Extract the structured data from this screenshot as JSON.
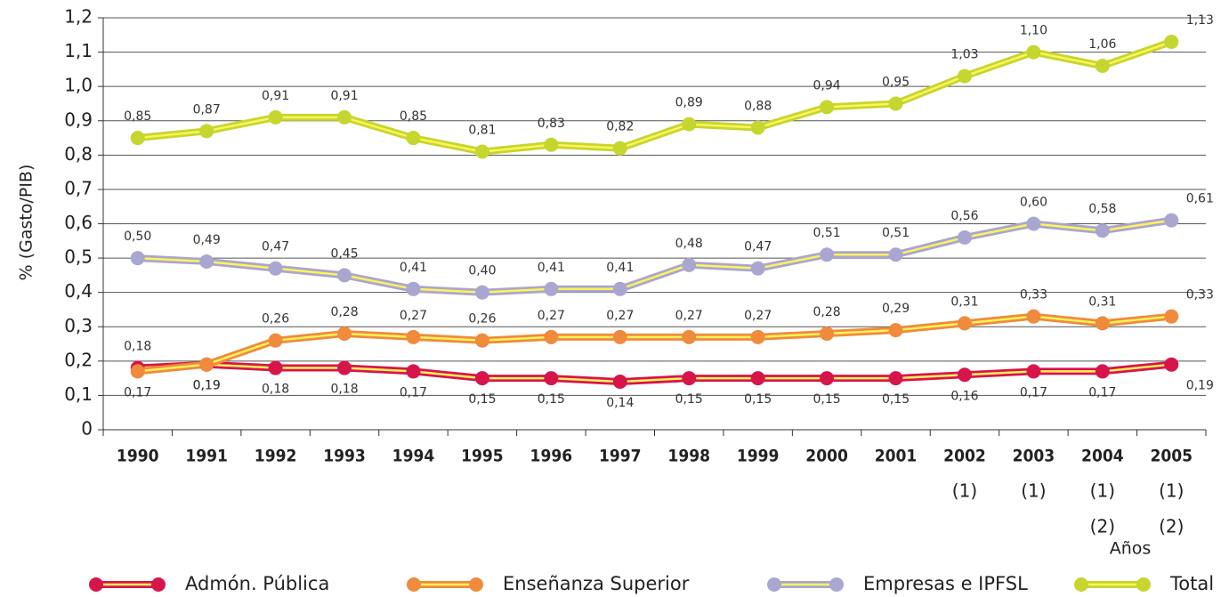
{
  "chart_data": {
    "type": "line",
    "y_label": "% (Gasto/PIB)",
    "x_label": "Años",
    "categories": [
      [
        "1990"
      ],
      [
        "1991"
      ],
      [
        "1992"
      ],
      [
        "1993"
      ],
      [
        "1994"
      ],
      [
        "1995"
      ],
      [
        "1996"
      ],
      [
        "1997"
      ],
      [
        "1998"
      ],
      [
        "1999"
      ],
      [
        "2000"
      ],
      [
        "2001"
      ],
      [
        "2002",
        "(1)"
      ],
      [
        "2003",
        "(1)"
      ],
      [
        "2004",
        "(1)",
        "(2)"
      ],
      [
        "2005",
        "(1)",
        "(2)"
      ]
    ],
    "ylim": [
      0,
      1.2
    ],
    "yticks": [
      0,
      {
        "value": 0.1,
        "label": "0,1"
      },
      {
        "value": 0.2,
        "label": "0,2"
      },
      {
        "value": 0.3,
        "label": "0,3"
      },
      {
        "value": 0.4,
        "label": "0,4"
      },
      {
        "value": 0.5,
        "label": "0,5"
      },
      {
        "value": 0.6,
        "label": "0,6"
      },
      {
        "value": 0.7,
        "label": "0,7"
      },
      {
        "value": 0.8,
        "label": "0,8"
      },
      {
        "value": 0.9,
        "label": "0,9"
      },
      {
        "value": 1.0,
        "label": "1,0"
      },
      {
        "value": 1.1,
        "label": "1,1"
      },
      {
        "value": 1.2,
        "label": "1,2"
      }
    ],
    "grid": true,
    "legend": "bottom",
    "series": [
      {
        "name": "Admón. Pública",
        "color": "#d6164a",
        "values": [
          0.18,
          0.19,
          0.18,
          0.18,
          0.17,
          0.15,
          0.15,
          0.14,
          0.15,
          0.15,
          0.15,
          0.15,
          0.16,
          0.17,
          0.17,
          0.19
        ],
        "value_labels": [
          "0,18",
          "0,19",
          "0,18",
          "0,18",
          "0,17",
          "0,15",
          "0,15",
          "0,14",
          "0,15",
          "0,15",
          "0,15",
          "0,15",
          "0,16",
          "0,17",
          "0,17",
          "0,19"
        ]
      },
      {
        "name": "Enseñanza Superior",
        "color": "#f08a3c",
        "values": [
          0.17,
          0.19,
          0.26,
          0.28,
          0.27,
          0.26,
          0.27,
          0.27,
          0.27,
          0.27,
          0.28,
          0.29,
          0.31,
          0.33,
          0.31,
          0.33
        ],
        "value_labels": [
          "0,17",
          "0,19",
          "0,26",
          "0,28",
          "0,27",
          "0,26",
          "0,27",
          "0,27",
          "0,27",
          "0,27",
          "0,28",
          "0,29",
          "0,31",
          "0,33",
          "0,31",
          "0,33"
        ]
      },
      {
        "name": "Empresas e IPFSL",
        "color": "#a9a6d0",
        "values": [
          0.5,
          0.49,
          0.47,
          0.45,
          0.41,
          0.4,
          0.41,
          0.41,
          0.48,
          0.47,
          0.51,
          0.51,
          0.56,
          0.6,
          0.58,
          0.61
        ],
        "value_labels": [
          "0,50",
          "0,49",
          "0,47",
          "0,45",
          "0,41",
          "0,40",
          "0,41",
          "0,41",
          "0,48",
          "0,47",
          "0,51",
          "0,51",
          "0,56",
          "0,60",
          "0,58",
          "0,61"
        ]
      },
      {
        "name": "Total",
        "color": "#c5d62e",
        "values": [
          0.85,
          0.87,
          0.91,
          0.91,
          0.85,
          0.81,
          0.83,
          0.82,
          0.89,
          0.88,
          0.94,
          0.95,
          1.03,
          1.1,
          1.06,
          1.13
        ],
        "value_labels": [
          "0,85",
          "0,87",
          "0,91",
          "0,91",
          "0,85",
          "0,81",
          "0,83",
          "0,82",
          "0,89",
          "0,88",
          "0,94",
          "0,95",
          "1,03",
          "1,10",
          "1,06",
          "1,13"
        ]
      }
    ]
  }
}
